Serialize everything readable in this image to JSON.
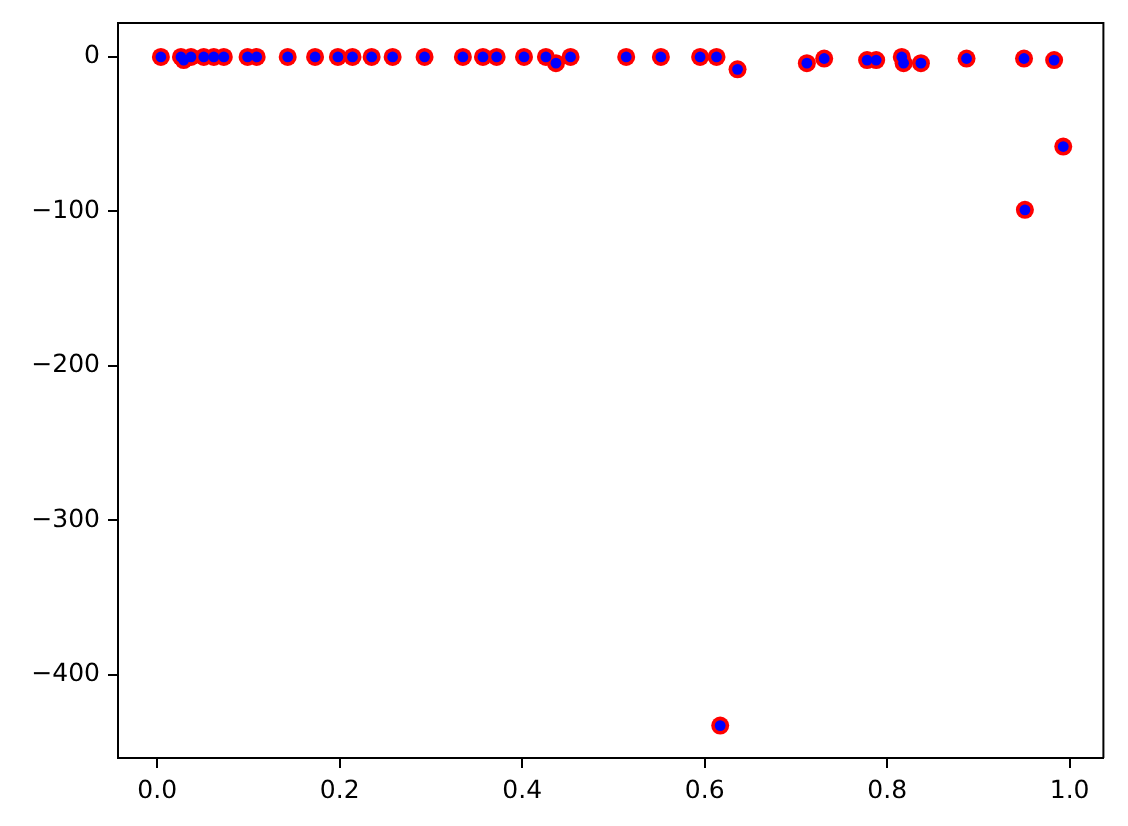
{
  "chart_data": {
    "type": "scatter",
    "marker": "circle",
    "xlim": [
      -0.043,
      1.037
    ],
    "ylim": [
      -454,
      22
    ],
    "xticks": [
      {
        "value": 0,
        "label": "0.0"
      },
      {
        "value": 0.2,
        "label": "0.2"
      },
      {
        "value": 0.4,
        "label": "0.4"
      },
      {
        "value": 0.6,
        "label": "0.6"
      },
      {
        "value": 0.8,
        "label": "0.8"
      },
      {
        "value": 1,
        "label": "1.0"
      }
    ],
    "yticks": [
      {
        "value": -400,
        "label": "−400"
      },
      {
        "value": -300,
        "label": "−300"
      },
      {
        "value": -200,
        "label": "−200"
      },
      {
        "value": -100,
        "label": "−100"
      },
      0
    ],
    "series": [
      {
        "color": "#ff0000",
        "x": [
          0.004,
          0.026,
          0.029,
          0.037,
          0.051,
          0.062,
          0.073,
          0.099,
          0.109,
          0.143,
          0.173,
          0.198,
          0.214,
          0.235,
          0.258,
          0.293,
          0.335,
          0.357,
          0.372,
          0.402,
          0.426,
          0.437,
          0.453,
          0.514,
          0.552,
          0.595,
          0.613,
          0.617,
          0.636,
          0.712,
          0.731,
          0.778,
          0.788,
          0.816,
          0.818,
          0.837,
          0.887,
          0.95,
          0.951,
          0.983,
          0.993
        ],
        "values": [
          0,
          0,
          -2,
          0,
          0,
          0,
          0,
          0,
          0,
          0,
          0,
          0,
          0,
          0,
          0,
          0,
          0,
          0,
          0,
          0,
          0,
          -4,
          0,
          0,
          0,
          0,
          0,
          -433,
          -8,
          -4,
          -1,
          -2,
          -2,
          0,
          -4,
          -4,
          -1,
          -1,
          -99,
          -2,
          -58
        ]
      },
      {
        "color": "#0000ff",
        "x": [
          0.004,
          0.026,
          0.029,
          0.037,
          0.051,
          0.062,
          0.073,
          0.099,
          0.109,
          0.143,
          0.173,
          0.198,
          0.214,
          0.235,
          0.258,
          0.293,
          0.335,
          0.357,
          0.372,
          0.402,
          0.426,
          0.437,
          0.453,
          0.514,
          0.552,
          0.595,
          0.613,
          0.617,
          0.636,
          0.712,
          0.731,
          0.778,
          0.788,
          0.816,
          0.818,
          0.837,
          0.887,
          0.95,
          0.951,
          0.983,
          0.993
        ],
        "values": [
          0,
          0,
          -2,
          0,
          0,
          0,
          0,
          0,
          0,
          0,
          0,
          0,
          0,
          0,
          0,
          0,
          0,
          0,
          0,
          0,
          0,
          -4,
          0,
          0,
          0,
          0,
          0,
          -433,
          -8,
          -4,
          -1,
          -2,
          -2,
          0,
          -4,
          -4,
          -1,
          -1,
          -99,
          -2,
          -58
        ]
      }
    ]
  }
}
